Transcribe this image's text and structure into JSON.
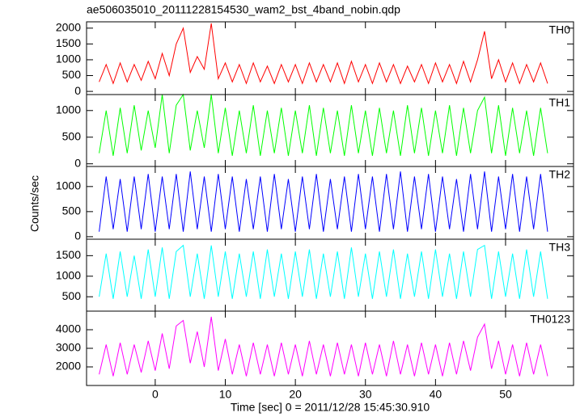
{
  "figure": {
    "title": "ae506035010_20111228154530_wam2_bst_4band_nobin.qdp",
    "xlabel": "Time [sec] 0 = 2011/12/28 15:45:30.910",
    "ylabel": "Counts/sec"
  },
  "chart_data": [
    {
      "type": "line",
      "xlim": [
        -9.8,
        59.7
      ],
      "ylim": [
        -100,
        2200
      ],
      "yticks": [
        0,
        500,
        1000,
        1500,
        2000
      ],
      "x": [
        -8,
        -7,
        -6,
        -5,
        -4,
        -3,
        -2,
        -1,
        0,
        1,
        2,
        3,
        4,
        5,
        6,
        7,
        8,
        9,
        10,
        11,
        12,
        13,
        14,
        15,
        16,
        17,
        18,
        19,
        20,
        21,
        22,
        23,
        24,
        25,
        26,
        27,
        28,
        29,
        30,
        31,
        32,
        33,
        34,
        35,
        36,
        37,
        38,
        39,
        40,
        41,
        42,
        43,
        44,
        45,
        46,
        47,
        48,
        49,
        50,
        51,
        52,
        53,
        54,
        55,
        56
      ],
      "series": [
        {
          "name": "TH0",
          "color": "#ff0000",
          "values": [
            300,
            850,
            250,
            900,
            300,
            850,
            350,
            950,
            400,
            1200,
            500,
            1500,
            2000,
            600,
            1100,
            700,
            2150,
            400,
            900,
            300,
            850,
            250,
            900,
            300,
            800,
            250,
            850,
            300,
            850,
            250,
            900,
            300,
            850,
            300,
            900,
            250,
            950,
            300,
            850,
            250,
            900,
            300,
            850,
            250,
            800,
            300,
            850,
            250,
            900,
            300,
            850,
            250,
            950,
            300,
            1000,
            1900,
            400,
            1000,
            300,
            900,
            250,
            850,
            300,
            900,
            250
          ]
        }
      ]
    },
    {
      "type": "line",
      "xlim": [
        -9.8,
        59.7
      ],
      "ylim": [
        -50,
        1300
      ],
      "yticks": [
        0,
        500,
        1000
      ],
      "x": [
        -8,
        -7,
        -6,
        -5,
        -4,
        -3,
        -2,
        -1,
        0,
        1,
        2,
        3,
        4,
        5,
        6,
        7,
        8,
        9,
        10,
        11,
        12,
        13,
        14,
        15,
        16,
        17,
        18,
        19,
        20,
        21,
        22,
        23,
        24,
        25,
        26,
        27,
        28,
        29,
        30,
        31,
        32,
        33,
        34,
        35,
        36,
        37,
        38,
        39,
        40,
        41,
        42,
        43,
        44,
        45,
        46,
        47,
        48,
        49,
        50,
        51,
        52,
        53,
        54,
        55,
        56
      ],
      "series": [
        {
          "name": "TH1",
          "color": "#00ff00",
          "values": [
            200,
            1000,
            150,
            1050,
            200,
            1100,
            250,
            1000,
            300,
            1300,
            200,
            1100,
            1300,
            250,
            1000,
            300,
            1300,
            200,
            1050,
            150,
            1000,
            200,
            1100,
            150,
            1000,
            200,
            1050,
            150,
            1000,
            200,
            1100,
            150,
            1050,
            200,
            1000,
            150,
            1100,
            200,
            1000,
            150,
            1050,
            200,
            1000,
            150,
            1100,
            200,
            1050,
            150,
            1000,
            200,
            1100,
            150,
            1050,
            200,
            1000,
            1250,
            200,
            1100,
            150,
            1050,
            200,
            1000,
            150,
            1050,
            200
          ]
        }
      ]
    },
    {
      "type": "line",
      "xlim": [
        -9.8,
        59.7
      ],
      "ylim": [
        -50,
        1400
      ],
      "yticks": [
        0,
        500,
        1000
      ],
      "x": [
        -8,
        -7,
        -6,
        -5,
        -4,
        -3,
        -2,
        -1,
        0,
        1,
        2,
        3,
        4,
        5,
        6,
        7,
        8,
        9,
        10,
        11,
        12,
        13,
        14,
        15,
        16,
        17,
        18,
        19,
        20,
        21,
        22,
        23,
        24,
        25,
        26,
        27,
        28,
        29,
        30,
        31,
        32,
        33,
        34,
        35,
        36,
        37,
        38,
        39,
        40,
        41,
        42,
        43,
        44,
        45,
        46,
        47,
        48,
        49,
        50,
        51,
        52,
        53,
        54,
        55,
        56
      ],
      "series": [
        {
          "name": "TH2",
          "color": "#0000ff",
          "values": [
            100,
            1200,
            150,
            1150,
            100,
            1200,
            150,
            1250,
            100,
            1200,
            150,
            1250,
            100,
            1300,
            150,
            1200,
            100,
            1250,
            150,
            1200,
            100,
            1150,
            150,
            1200,
            100,
            1250,
            150,
            1150,
            100,
            1200,
            150,
            1250,
            100,
            1150,
            150,
            1200,
            100,
            1250,
            150,
            1200,
            100,
            1250,
            150,
            1300,
            100,
            1200,
            150,
            1250,
            100,
            1200,
            150,
            1150,
            100,
            1250,
            150,
            1300,
            100,
            1200,
            150,
            1250,
            100,
            1200,
            150,
            1250,
            100
          ]
        }
      ]
    },
    {
      "type": "line",
      "xlim": [
        -9.8,
        59.7
      ],
      "ylim": [
        150,
        1900
      ],
      "yticks": [
        500,
        1000,
        1500
      ],
      "x": [
        -8,
        -7,
        -6,
        -5,
        -4,
        -3,
        -2,
        -1,
        0,
        1,
        2,
        3,
        4,
        5,
        6,
        7,
        8,
        9,
        10,
        11,
        12,
        13,
        14,
        15,
        16,
        17,
        18,
        19,
        20,
        21,
        22,
        23,
        24,
        25,
        26,
        27,
        28,
        29,
        30,
        31,
        32,
        33,
        34,
        35,
        36,
        37,
        38,
        39,
        40,
        41,
        42,
        43,
        44,
        45,
        46,
        47,
        48,
        49,
        50,
        51,
        52,
        53,
        54,
        55,
        56
      ],
      "series": [
        {
          "name": "TH3",
          "color": "#00ffff",
          "values": [
            500,
            1550,
            450,
            1600,
            500,
            1500,
            450,
            1650,
            500,
            1700,
            450,
            1600,
            1750,
            500,
            1550,
            450,
            1750,
            500,
            1600,
            450,
            1550,
            500,
            1600,
            450,
            1650,
            500,
            1550,
            450,
            1600,
            500,
            1650,
            450,
            1550,
            500,
            1600,
            450,
            1700,
            500,
            1550,
            450,
            1600,
            500,
            1650,
            450,
            1550,
            500,
            1600,
            450,
            1650,
            500,
            1550,
            450,
            1600,
            500,
            1650,
            1750,
            450,
            1600,
            500,
            1550,
            450,
            1650,
            500,
            1600,
            450
          ]
        }
      ]
    },
    {
      "type": "line",
      "xlim": [
        -9.8,
        59.7
      ],
      "ylim": [
        1000,
        5000
      ],
      "yticks": [
        2000,
        3000,
        4000
      ],
      "xticks": [
        0,
        10,
        20,
        30,
        40,
        50
      ],
      "x": [
        -8,
        -7,
        -6,
        -5,
        -4,
        -3,
        -2,
        -1,
        0,
        1,
        2,
        3,
        4,
        5,
        6,
        7,
        8,
        9,
        10,
        11,
        12,
        13,
        14,
        15,
        16,
        17,
        18,
        19,
        20,
        21,
        22,
        23,
        24,
        25,
        26,
        27,
        28,
        29,
        30,
        31,
        32,
        33,
        34,
        35,
        36,
        37,
        38,
        39,
        40,
        41,
        42,
        43,
        44,
        45,
        46,
        47,
        48,
        49,
        50,
        51,
        52,
        53,
        54,
        55,
        56
      ],
      "series": [
        {
          "name": "TH0123",
          "color": "#ff00ff",
          "values": [
            1600,
            3200,
            1500,
            3300,
            1600,
            3200,
            1700,
            3400,
            1800,
            3800,
            1900,
            4200,
            4500,
            2200,
            3900,
            2000,
            4700,
            1800,
            3500,
            1600,
            3200,
            1500,
            3300,
            1600,
            3200,
            1500,
            3300,
            1600,
            3200,
            1500,
            3400,
            1600,
            3200,
            1500,
            3300,
            1600,
            3200,
            1500,
            3300,
            1600,
            3200,
            1500,
            3400,
            1600,
            3200,
            1500,
            3300,
            1600,
            3200,
            1500,
            3300,
            1600,
            3400,
            1800,
            3600,
            4300,
            1900,
            3400,
            1600,
            3200,
            1500,
            3300,
            1600,
            3200,
            1500
          ]
        }
      ]
    }
  ]
}
